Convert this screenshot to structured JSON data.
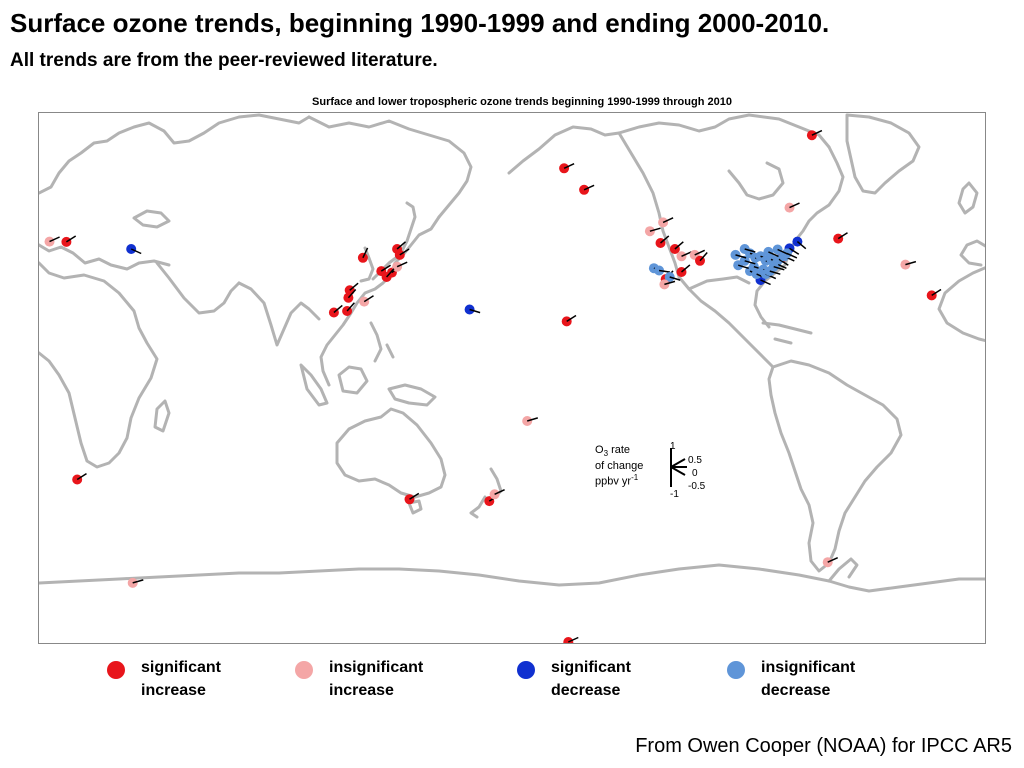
{
  "header": {
    "title": "Surface ozone trends, beginning 1990-1999 and ending 2000-2010.",
    "subtitle": "All trends are from the peer-reviewed literature."
  },
  "map": {
    "title": "Surface and lower tropospheric ozone trends beginning 1990-1999 through 2010",
    "coastline_color": "#b3b3b3",
    "scale_key": {
      "label_line1": "O",
      "label_sub": "3",
      "label_line1_rest": " rate",
      "label_line2": "of change",
      "label_line3": "ppbv yr",
      "label_sup": "-1",
      "ticks": [
        "1",
        "0.5",
        "0",
        "-0.5",
        "-1"
      ]
    }
  },
  "legend": {
    "items": [
      {
        "label_line1": "significant",
        "label_line2": "increase",
        "color": "#e8151b"
      },
      {
        "label_line1": "insignificant",
        "label_line2": "increase",
        "color": "#f4a6a6"
      },
      {
        "label_line1": "significant",
        "label_line2": "decrease",
        "color": "#1030d0"
      },
      {
        "label_line1": "insignificant",
        "label_line2": "decrease",
        "color": "#5f95d8"
      }
    ]
  },
  "credit": "From Owen Cooper (NOAA) for IPCC AR5",
  "stations": [
    {
      "cls": "sig-inc",
      "lon": 14.4,
      "lat": 46.4,
      "trend": 0.4
    },
    {
      "cls": "ins-inc",
      "lon": 8.0,
      "lat": 46.5,
      "trend": 0.3
    },
    {
      "cls": "sig-dec",
      "lon": 39.0,
      "lat": 44.0,
      "trend": -0.3
    },
    {
      "cls": "sig-inc",
      "lon": 127.0,
      "lat": 41.0,
      "trend": 0.8
    },
    {
      "cls": "sig-inc",
      "lon": 140.0,
      "lat": 44.0,
      "trend": 0.5
    },
    {
      "cls": "sig-inc",
      "lon": 141.0,
      "lat": 42.0,
      "trend": 0.4
    },
    {
      "cls": "sig-inc",
      "lon": 134.0,
      "lat": 36.5,
      "trend": 0.4
    },
    {
      "cls": "sig-inc",
      "lon": 138.0,
      "lat": 36.0,
      "trend": 0.5
    },
    {
      "cls": "ins-inc",
      "lon": 140.0,
      "lat": 38.0,
      "trend": 0.3
    },
    {
      "cls": "sig-inc",
      "lon": 136.0,
      "lat": 34.5,
      "trend": 0.6
    },
    {
      "cls": "sig-inc",
      "lon": 122.0,
      "lat": 30.0,
      "trend": 0.5
    },
    {
      "cls": "sig-inc",
      "lon": 121.5,
      "lat": 27.5,
      "trend": 0.6
    },
    {
      "cls": "sig-inc",
      "lon": 116.0,
      "lat": 22.5,
      "trend": 0.5
    },
    {
      "cls": "sig-inc",
      "lon": 121.0,
      "lat": 23.0,
      "trend": 0.6
    },
    {
      "cls": "ins-inc",
      "lon": 127.5,
      "lat": 26.2,
      "trend": 0.4
    },
    {
      "cls": "sig-dec",
      "lon": 167.5,
      "lat": 23.5,
      "trend": -0.2
    },
    {
      "cls": "sig-inc",
      "lon": -155.6,
      "lat": 19.5,
      "trend": 0.4
    },
    {
      "cls": "ins-inc",
      "lon": -170.6,
      "lat": -14.2,
      "trend": 0.2
    },
    {
      "cls": "sig-inc",
      "lon": -156.6,
      "lat": 71.3,
      "trend": 0.3
    },
    {
      "cls": "sig-inc",
      "lon": -149.0,
      "lat": 64.0,
      "trend": 0.3
    },
    {
      "cls": "sig-inc",
      "lon": -62.5,
      "lat": 82.5,
      "trend": 0.3
    },
    {
      "cls": "ins-inc",
      "lon": -71.0,
      "lat": 58.0,
      "trend": 0.3
    },
    {
      "cls": "sig-inc",
      "lon": -52.5,
      "lat": 47.5,
      "trend": 0.4
    },
    {
      "cls": "ins-inc",
      "lon": -27.0,
      "lat": 38.7,
      "trend": 0.2
    },
    {
      "cls": "sig-inc",
      "lon": -17.0,
      "lat": 28.3,
      "trend": 0.4
    },
    {
      "cls": "ins-inc",
      "lon": -119.0,
      "lat": 53.0,
      "trend": 0.3
    },
    {
      "cls": "ins-inc",
      "lon": -124.0,
      "lat": 50.0,
      "trend": 0.2
    },
    {
      "cls": "sig-inc",
      "lon": -120.0,
      "lat": 46.0,
      "trend": 0.5
    },
    {
      "cls": "sig-inc",
      "lon": -114.5,
      "lat": 44.0,
      "trend": 0.5
    },
    {
      "cls": "ins-inc",
      "lon": -112.0,
      "lat": 41.5,
      "trend": 0.3
    },
    {
      "cls": "ins-inc",
      "lon": -107.0,
      "lat": 42.0,
      "trend": 0.3
    },
    {
      "cls": "sig-inc",
      "lon": -105.0,
      "lat": 40.0,
      "trend": 0.6
    },
    {
      "cls": "sig-inc",
      "lon": -112.0,
      "lat": 36.2,
      "trend": 0.5
    },
    {
      "cls": "sig-inc",
      "lon": -118.0,
      "lat": 33.8,
      "trend": 0.6
    },
    {
      "cls": "ins-dec",
      "lon": -122.5,
      "lat": 37.5,
      "trend": -0.2
    },
    {
      "cls": "ins-dec",
      "lon": -120.5,
      "lat": 36.7,
      "trend": -0.1
    },
    {
      "cls": "ins-dec",
      "lon": -116.5,
      "lat": 34.5,
      "trend": -0.2
    },
    {
      "cls": "ins-inc",
      "lon": -118.5,
      "lat": 32.0,
      "trend": 0.2
    },
    {
      "cls": "sig-inc",
      "lon": -74.0,
      "lat": 41.0,
      "trend": 0.5
    },
    {
      "cls": "sig-dec",
      "lon": -68.0,
      "lat": 46.5,
      "trend": -0.5
    },
    {
      "cls": "sig-dec",
      "lon": -71.0,
      "lat": 44.2,
      "trend": -0.4
    },
    {
      "cls": "sig-dec",
      "lon": -82.0,
      "lat": 33.5,
      "trend": -0.3
    },
    {
      "cls": "ins-dec",
      "lon": -86.0,
      "lat": 42.5,
      "trend": -0.2
    },
    {
      "cls": "ins-dec",
      "lon": -84.0,
      "lat": 41.0,
      "trend": -0.3
    },
    {
      "cls": "ins-dec",
      "lon": -82.0,
      "lat": 41.5,
      "trend": -0.2
    },
    {
      "cls": "ins-dec",
      "lon": -80.0,
      "lat": 40.0,
      "trend": -0.3
    },
    {
      "cls": "ins-dec",
      "lon": -78.0,
      "lat": 40.5,
      "trend": -0.4
    },
    {
      "cls": "ins-dec",
      "lon": -76.0,
      "lat": 39.0,
      "trend": -0.3
    },
    {
      "cls": "ins-dec",
      "lon": -77.0,
      "lat": 38.0,
      "trend": -0.2
    },
    {
      "cls": "ins-dec",
      "lon": -75.0,
      "lat": 40.5,
      "trend": -0.4
    },
    {
      "cls": "ins-dec",
      "lon": -73.0,
      "lat": 41.5,
      "trend": -0.3
    },
    {
      "cls": "ins-dec",
      "lon": -72.0,
      "lat": 42.5,
      "trend": -0.3
    },
    {
      "cls": "ins-dec",
      "lon": -84.5,
      "lat": 38.0,
      "trend": -0.2
    },
    {
      "cls": "ins-dec",
      "lon": -86.0,
      "lat": 36.5,
      "trend": -0.3
    },
    {
      "cls": "ins-dec",
      "lon": -81.0,
      "lat": 37.0,
      "trend": -0.2
    },
    {
      "cls": "ins-dec",
      "lon": -79.0,
      "lat": 43.0,
      "trend": -0.3
    },
    {
      "cls": "ins-dec",
      "lon": -88.0,
      "lat": 40.0,
      "trend": -0.2
    },
    {
      "cls": "ins-dec",
      "lon": -90.5,
      "lat": 38.5,
      "trend": -0.2
    },
    {
      "cls": "ins-dec",
      "lon": -83.5,
      "lat": 35.5,
      "trend": -0.3
    },
    {
      "cls": "ins-dec",
      "lon": -80.0,
      "lat": 35.5,
      "trend": -0.3
    },
    {
      "cls": "ins-dec",
      "lon": -78.5,
      "lat": 36.5,
      "trend": -0.2
    },
    {
      "cls": "ins-dec",
      "lon": -88.0,
      "lat": 44.0,
      "trend": -0.2
    },
    {
      "cls": "ins-dec",
      "lon": -75.5,
      "lat": 43.8,
      "trend": -0.3
    },
    {
      "cls": "ins-dec",
      "lon": -91.5,
      "lat": 42.0,
      "trend": -0.2
    },
    {
      "cls": "sig-inc",
      "lon": 18.5,
      "lat": -34.0,
      "trend": 0.4
    },
    {
      "cls": "sig-inc",
      "lon": 144.7,
      "lat": -40.7,
      "trend": 0.4
    },
    {
      "cls": "sig-inc",
      "lon": 175.0,
      "lat": -41.3,
      "trend": 0.4
    },
    {
      "cls": "ins-inc",
      "lon": 177.0,
      "lat": -39.0,
      "trend": 0.3
    },
    {
      "cls": "ins-inc",
      "lon": -56.5,
      "lat": -62.0,
      "trend": 0.3
    },
    {
      "cls": "ins-inc",
      "lon": 39.6,
      "lat": -69.0,
      "trend": 0.2
    },
    {
      "cls": "sig-inc",
      "lon": -155.0,
      "lat": -89.0,
      "trend": 0.3
    }
  ]
}
